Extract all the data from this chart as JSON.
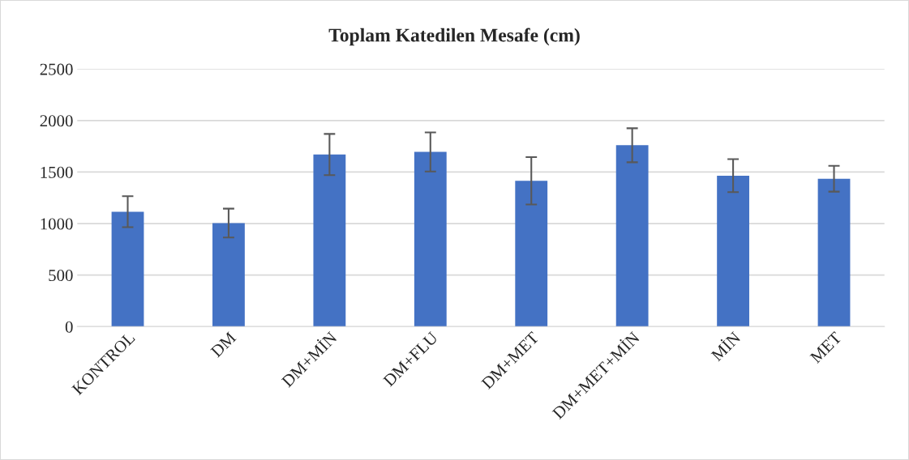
{
  "chart_data": {
    "type": "bar",
    "title": "Toplam Katedilen Mesafe (cm)",
    "categories": [
      "KONTROL",
      "DM",
      "DM+MİN",
      "DM+FLU",
      "DM+MET",
      "DM+MET+MİN",
      "MİN",
      "MET"
    ],
    "values": [
      1115,
      1005,
      1670,
      1695,
      1415,
      1760,
      1465,
      1435
    ],
    "errors": [
      150,
      140,
      200,
      190,
      230,
      165,
      160,
      125
    ],
    "color": "#4472c4",
    "ylim": [
      0,
      2500
    ],
    "yticks": [
      0,
      500,
      1000,
      1500,
      2000,
      2500
    ],
    "grid": "y"
  }
}
